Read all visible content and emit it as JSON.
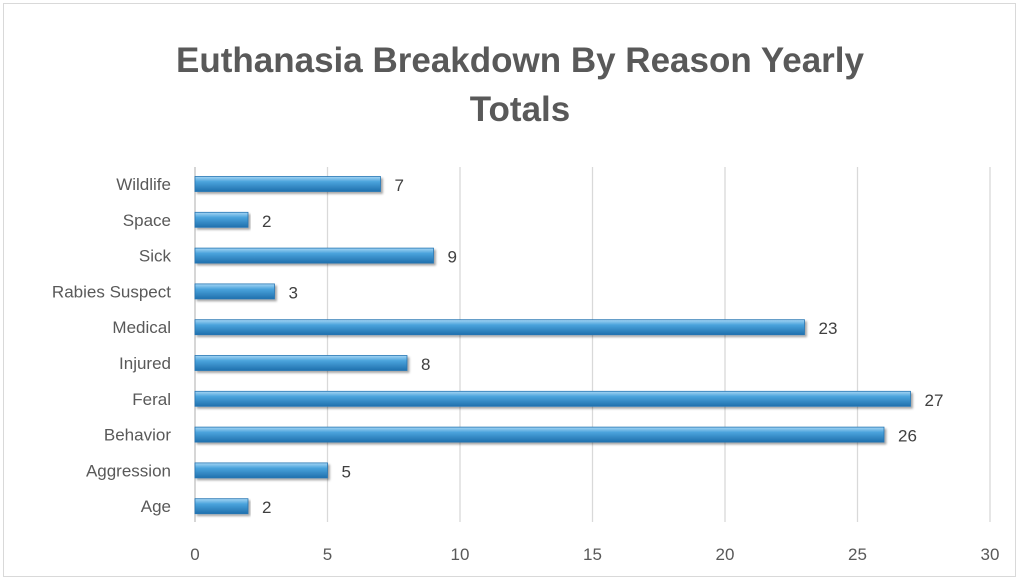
{
  "chart_data": {
    "type": "bar",
    "orientation": "horizontal",
    "title": "Euthanasia Breakdown By Reason Yearly Totals",
    "title_lines": [
      "Euthanasia Breakdown By Reason Yearly",
      "Totals"
    ],
    "categories": [
      "Wildlife",
      "Space",
      "Sick",
      "Rabies Suspect",
      "Medical",
      "Injured",
      "Feral",
      "Behavior",
      "Aggression",
      "Age"
    ],
    "values": [
      7,
      2,
      9,
      3,
      23,
      8,
      27,
      26,
      5,
      2
    ],
    "xlim": [
      0,
      30
    ],
    "xticks": [
      0,
      5,
      10,
      15,
      20,
      25,
      30
    ],
    "xlabel": "",
    "ylabel": "",
    "grid": "vertical",
    "legend": "none",
    "data_labels": true,
    "colors": {
      "bar": "#3e97d3",
      "bar_light": "#7ec3ee",
      "bar_dark": "#2676b3",
      "grid": "#d9d9d9",
      "text": "#595959"
    }
  }
}
